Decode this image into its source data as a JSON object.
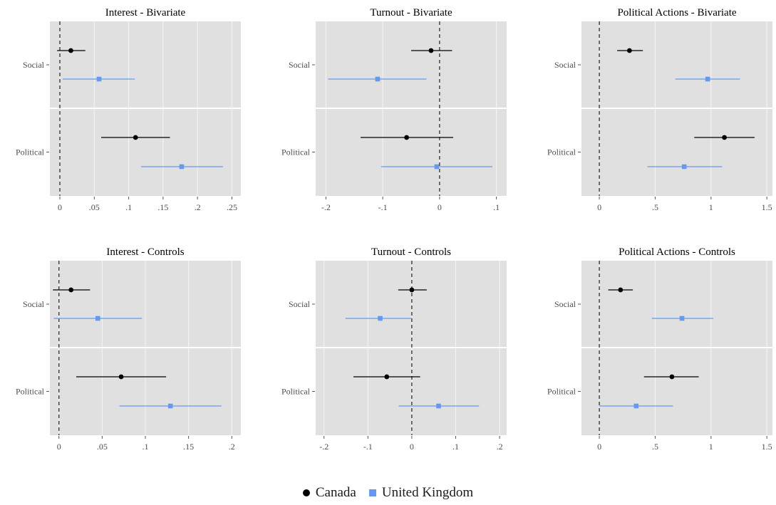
{
  "colors": {
    "canada": "#000000",
    "united_kingdom": "#6699ee",
    "panel_background": "#e0e0e0",
    "gridline": "#f5f5f5"
  },
  "legend": {
    "items": [
      {
        "key": "canada",
        "label": "Canada",
        "marker": "circle"
      },
      {
        "key": "united_kingdom",
        "label": "United Kingdom",
        "marker": "square"
      }
    ]
  },
  "chart_data": [
    {
      "type": "scatter",
      "title": "Interest - Bivariate",
      "categories": [
        "Social",
        "Political"
      ],
      "xlim": [
        -0.0145,
        0.263
      ],
      "xticks": [
        0,
        0.05,
        0.1,
        0.15,
        0.2,
        0.25
      ],
      "xtick_labels": [
        "0",
        ".05",
        ".1",
        ".15",
        ".2",
        ".25"
      ],
      "reference_line": 0,
      "series": [
        {
          "name": "Canada",
          "estimates": [
            0.016,
            0.11
          ],
          "ci_low": [
            -0.004,
            0.06
          ],
          "ci_high": [
            0.037,
            0.16
          ]
        },
        {
          "name": "United Kingdom",
          "estimates": [
            0.057,
            0.177
          ],
          "ci_low": [
            0.004,
            0.118
          ],
          "ci_high": [
            0.109,
            0.237
          ]
        }
      ]
    },
    {
      "type": "scatter",
      "title": "Turnout - Bivariate",
      "categories": [
        "Social",
        "Political"
      ],
      "xlim": [
        -0.218,
        0.118
      ],
      "xticks": [
        -0.2,
        -0.1,
        0,
        0.1
      ],
      "xtick_labels": [
        "-.2",
        "-.1",
        "0",
        ".1"
      ],
      "reference_line": 0,
      "series": [
        {
          "name": "Canada",
          "estimates": [
            -0.015,
            -0.058
          ],
          "ci_low": [
            -0.05,
            -0.139
          ],
          "ci_high": [
            0.022,
            0.024
          ]
        },
        {
          "name": "United Kingdom",
          "estimates": [
            -0.109,
            -0.005
          ],
          "ci_low": [
            -0.196,
            -0.103
          ],
          "ci_high": [
            -0.023,
            0.093
          ]
        }
      ]
    },
    {
      "type": "scatter",
      "title": "Political Actions - Bivariate",
      "categories": [
        "Social",
        "Political"
      ],
      "xlim": [
        -0.16,
        1.55
      ],
      "xticks": [
        0,
        0.5,
        1,
        1.5
      ],
      "xtick_labels": [
        "0",
        ".5",
        "1",
        "1.5"
      ],
      "reference_line": 0,
      "series": [
        {
          "name": "Canada",
          "estimates": [
            0.27,
            1.12
          ],
          "ci_low": [
            0.16,
            0.85
          ],
          "ci_high": [
            0.39,
            1.39
          ]
        },
        {
          "name": "United Kingdom",
          "estimates": [
            0.97,
            0.76
          ],
          "ci_low": [
            0.68,
            0.43
          ],
          "ci_high": [
            1.26,
            1.1
          ]
        }
      ]
    },
    {
      "type": "scatter",
      "title": "Interest - Controls",
      "categories": [
        "Social",
        "Political"
      ],
      "xlim": [
        -0.0105,
        0.2105
      ],
      "xticks": [
        0,
        0.05,
        0.1,
        0.15,
        0.2
      ],
      "xtick_labels": [
        "0",
        ".05",
        ".1",
        ".15",
        ".2"
      ],
      "reference_line": 0,
      "series": [
        {
          "name": "Canada",
          "estimates": [
            0.014,
            0.072
          ],
          "ci_low": [
            -0.007,
            0.02
          ],
          "ci_high": [
            0.036,
            0.124
          ]
        },
        {
          "name": "United Kingdom",
          "estimates": [
            0.045,
            0.129
          ],
          "ci_low": [
            -0.006,
            0.07
          ],
          "ci_high": [
            0.096,
            0.188
          ]
        }
      ]
    },
    {
      "type": "scatter",
      "title": "Turnout - Controls",
      "categories": [
        "Social",
        "Political"
      ],
      "xlim": [
        -0.219,
        0.216
      ],
      "xticks": [
        -0.2,
        -0.1,
        0,
        0.1,
        0.2
      ],
      "xtick_labels": [
        "-.2",
        "-.1",
        "0",
        ".1",
        ".2"
      ],
      "reference_line": 0,
      "series": [
        {
          "name": "Canada",
          "estimates": [
            0,
            -0.057
          ],
          "ci_low": [
            -0.031,
            -0.133
          ],
          "ci_high": [
            0.034,
            0.019
          ]
        },
        {
          "name": "United Kingdom",
          "estimates": [
            -0.072,
            0.061
          ],
          "ci_low": [
            -0.151,
            -0.03
          ],
          "ci_high": [
            0,
            0.153
          ]
        }
      ]
    },
    {
      "type": "scatter",
      "title": "Political Actions - Controls",
      "categories": [
        "Social",
        "Political"
      ],
      "xlim": [
        -0.16,
        1.55
      ],
      "xticks": [
        0,
        0.5,
        1,
        1.5
      ],
      "xtick_labels": [
        "0",
        ".5",
        "1",
        "1.5"
      ],
      "reference_line": 0,
      "series": [
        {
          "name": "Canada",
          "estimates": [
            0.19,
            0.65
          ],
          "ci_low": [
            0.08,
            0.4
          ],
          "ci_high": [
            0.3,
            0.89
          ]
        },
        {
          "name": "United Kingdom",
          "estimates": [
            0.74,
            0.33
          ],
          "ci_low": [
            0.47,
            0
          ],
          "ci_high": [
            1.02,
            0.66
          ]
        }
      ]
    }
  ]
}
